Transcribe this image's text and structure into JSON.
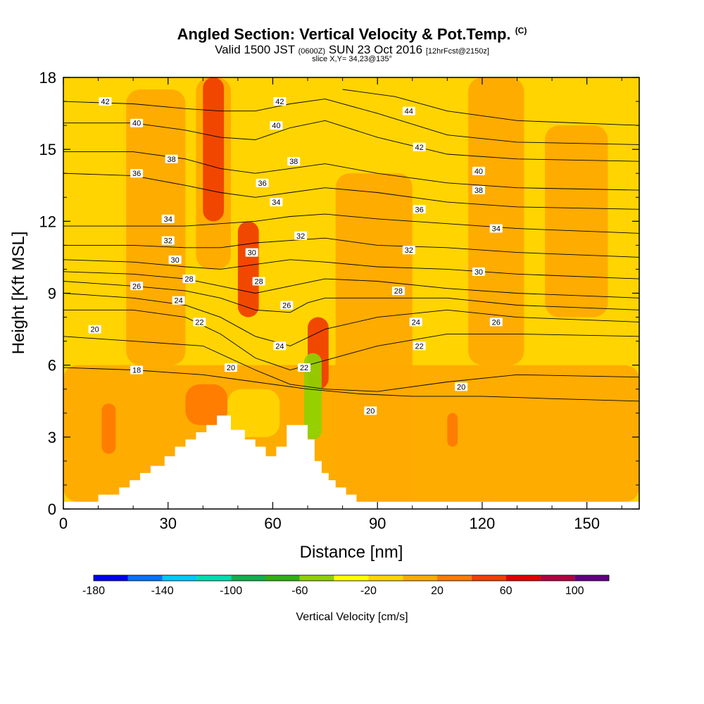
{
  "title": {
    "main": "Angled Section: Vertical Velocity & Pot.Temp.",
    "main_unit": "(C)",
    "valid_prefix": "Valid 1500 JST",
    "valid_z": "(0600Z)",
    "valid_date": "SUN 23 Oct 2016",
    "forecast": "[12hrFcst@2150z]",
    "slice": "slice X,Y= 34,23@135°"
  },
  "chart_data": {
    "type": "heatmap",
    "xlabel": "Distance [nm]",
    "ylabel": "Height [Kft MSL]",
    "xlim": [
      0,
      165
    ],
    "ylim": [
      0,
      18
    ],
    "x_ticks": [
      0,
      30,
      60,
      90,
      120,
      150
    ],
    "y_ticks": [
      0,
      3,
      6,
      9,
      12,
      15,
      18
    ],
    "colorbar": {
      "title": "Vertical Velocity [cm/s]",
      "bounds": [
        -180,
        -160,
        -140,
        -120,
        -100,
        -80,
        -60,
        -40,
        -20,
        0,
        20,
        40,
        60,
        80,
        100,
        120
      ],
      "colors": [
        "#0000ee",
        "#0070ff",
        "#00c8ff",
        "#00ddb0",
        "#10b050",
        "#30b010",
        "#90d000",
        "#ffff00",
        "#ffd400",
        "#ffaa00",
        "#ff7a00",
        "#f04000",
        "#e00000",
        "#b00040",
        "#600080"
      ],
      "tick_labels": [
        -180,
        -140,
        -100,
        -60,
        -20,
        20,
        60,
        100
      ]
    },
    "background_color": "#ffd400",
    "velocity_features": [
      {
        "name": "orange band",
        "value": 5,
        "x0": 0,
        "x1": 165,
        "y0": 0.3,
        "y1": 6
      },
      {
        "name": "orange column",
        "value": 5,
        "x0": 18,
        "x1": 35,
        "y0": 6,
        "y1": 17.5
      },
      {
        "name": "orange column",
        "value": 5,
        "x0": 38,
        "x1": 48,
        "y0": 10,
        "y1": 18
      },
      {
        "name": "orange column",
        "value": 5,
        "x0": 78,
        "x1": 100,
        "y0": 0.3,
        "y1": 14
      },
      {
        "name": "orange column",
        "value": 5,
        "x0": 116,
        "x1": 132,
        "y0": 6,
        "y1": 18
      },
      {
        "name": "orange column",
        "value": 5,
        "x0": 138,
        "x1": 156,
        "y0": 8,
        "y1": 16
      },
      {
        "name": "updraft core",
        "value": 45,
        "x0": 40,
        "x1": 46,
        "y0": 12,
        "y1": 18
      },
      {
        "name": "updraft core",
        "value": 45,
        "x0": 50,
        "x1": 56,
        "y0": 8,
        "y1": 12
      },
      {
        "name": "updraft core",
        "value": 45,
        "x0": 70,
        "x1": 76,
        "y0": 5,
        "y1": 8
      },
      {
        "name": "updraft core",
        "value": 30,
        "x0": 35,
        "x1": 47,
        "y0": 3.5,
        "y1": 5.2
      },
      {
        "name": "updraft core",
        "value": 30,
        "x0": 11,
        "x1": 15,
        "y0": 2.3,
        "y1": 4.4
      },
      {
        "name": "updraft core",
        "value": 30,
        "x0": 110,
        "x1": 113,
        "y0": 2.6,
        "y1": 4
      },
      {
        "name": "downdraft",
        "value": -10,
        "x0": 47,
        "x1": 62,
        "y0": 3,
        "y1": 5
      },
      {
        "name": "downdraft",
        "value": -10,
        "x0": 49,
        "x1": 54,
        "y0": 13,
        "y1": 18
      },
      {
        "name": "downdraft",
        "value": -10,
        "x0": 104,
        "x1": 110,
        "y0": 10,
        "y1": 16
      },
      {
        "name": "downdraft",
        "value": -10,
        "x0": 70,
        "x1": 74,
        "y0": 3,
        "y1": 5
      },
      {
        "name": "downdraft",
        "value": -50,
        "x0": 69,
        "x1": 74,
        "y0": 2.9,
        "y1": 6.5
      }
    ],
    "terrain": {
      "x": [
        0,
        10,
        10,
        16,
        16,
        19,
        19,
        22,
        22,
        25,
        25,
        29,
        29,
        32,
        32,
        35,
        35,
        38,
        38,
        41,
        41,
        44,
        44,
        48,
        48,
        52,
        52,
        55,
        55,
        58,
        58,
        61,
        61,
        64,
        64,
        66,
        66,
        70,
        70,
        72,
        72,
        74,
        74,
        76,
        76,
        78,
        78,
        81,
        81,
        84,
        84,
        90,
        90,
        165
      ],
      "y": [
        0.3,
        0.3,
        0.6,
        0.6,
        0.9,
        0.9,
        1.2,
        1.2,
        1.5,
        1.5,
        1.8,
        1.8,
        2.2,
        2.2,
        2.6,
        2.6,
        2.9,
        2.9,
        3.2,
        3.2,
        3.5,
        3.5,
        3.9,
        3.9,
        3.3,
        3.3,
        2.9,
        2.9,
        2.6,
        2.6,
        2.2,
        2.2,
        2.6,
        2.6,
        3.5,
        3.5,
        3.5,
        3.5,
        2.9,
        2.9,
        2.0,
        2.0,
        1.5,
        1.5,
        1.2,
        1.2,
        0.9,
        0.9,
        0.6,
        0.6,
        0.3,
        0.3,
        0.3,
        0.3
      ]
    },
    "isentropes": [
      {
        "value": 18,
        "x": [
          0,
          20,
          40,
          55,
          70,
          85,
          100,
          120,
          140,
          165
        ],
        "y": [
          5.9,
          5.8,
          5.6,
          5.3,
          5.0,
          4.8,
          4.7,
          4.7,
          4.6,
          4.5
        ]
      },
      {
        "value": 20,
        "x": [
          0,
          20,
          40,
          55,
          65,
          75,
          90,
          110,
          130,
          165
        ],
        "y": [
          7.2,
          7.0,
          6.8,
          5.8,
          5.2,
          5.0,
          4.9,
          5.3,
          5.6,
          5.5
        ]
      },
      {
        "value": 22,
        "x": [
          0,
          20,
          35,
          45,
          55,
          65,
          75,
          90,
          110,
          130,
          165
        ],
        "y": [
          8.3,
          8.3,
          8.0,
          7.3,
          6.3,
          5.8,
          6.2,
          6.8,
          7.3,
          7.3,
          7.2
        ]
      },
      {
        "value": 24,
        "x": [
          0,
          20,
          35,
          45,
          55,
          65,
          75,
          90,
          110,
          130,
          165
        ],
        "y": [
          9.0,
          8.8,
          8.5,
          8.0,
          7.2,
          6.8,
          7.5,
          8.0,
          8.3,
          8.0,
          7.8
        ]
      },
      {
        "value": 26,
        "x": [
          0,
          20,
          35,
          45,
          55,
          65,
          70,
          75,
          90,
          110,
          130,
          165
        ],
        "y": [
          9.5,
          9.3,
          9.1,
          8.8,
          8.3,
          8.2,
          8.6,
          8.8,
          8.8,
          8.8,
          8.5,
          8.3
        ]
      },
      {
        "value": 28,
        "x": [
          0,
          20,
          35,
          45,
          55,
          65,
          75,
          90,
          110,
          130,
          165
        ],
        "y": [
          9.9,
          9.8,
          9.6,
          9.3,
          9.0,
          9.3,
          9.6,
          9.5,
          9.2,
          9.0,
          8.8
        ]
      },
      {
        "value": 30,
        "x": [
          0,
          20,
          35,
          45,
          55,
          65,
          75,
          90,
          110,
          130,
          165
        ],
        "y": [
          10.4,
          10.3,
          10.1,
          10.0,
          10.2,
          10.4,
          10.3,
          10.1,
          10.0,
          9.8,
          9.6
        ]
      },
      {
        "value": 32,
        "x": [
          0,
          20,
          35,
          45,
          55,
          65,
          75,
          90,
          110,
          130,
          165
        ],
        "y": [
          11.0,
          11.0,
          10.9,
          10.9,
          11.1,
          11.2,
          11.3,
          11.0,
          10.9,
          10.7,
          10.5
        ]
      },
      {
        "value": 34,
        "x": [
          0,
          20,
          35,
          45,
          55,
          65,
          75,
          90,
          110,
          130,
          165
        ],
        "y": [
          11.8,
          11.8,
          11.8,
          11.9,
          12.0,
          12.2,
          12.3,
          12.1,
          11.9,
          11.7,
          11.5
        ]
      },
      {
        "value": 36,
        "x": [
          0,
          20,
          35,
          45,
          55,
          65,
          75,
          90,
          110,
          130,
          165
        ],
        "y": [
          14.0,
          13.9,
          13.5,
          13.2,
          13.0,
          13.2,
          13.4,
          13.2,
          12.8,
          12.6,
          12.5
        ]
      },
      {
        "value": 38,
        "x": [
          0,
          20,
          35,
          45,
          55,
          65,
          75,
          90,
          110,
          130,
          165
        ],
        "y": [
          14.9,
          14.9,
          14.6,
          14.2,
          14.0,
          14.2,
          14.4,
          14.0,
          13.6,
          13.4,
          13.3
        ]
      },
      {
        "value": 40,
        "x": [
          0,
          20,
          35,
          45,
          55,
          65,
          75,
          90,
          110,
          130,
          165
        ],
        "y": [
          16.1,
          16.1,
          15.8,
          15.5,
          15.4,
          15.9,
          16.2,
          15.5,
          14.8,
          14.6,
          14.5
        ]
      },
      {
        "value": 42,
        "x": [
          0,
          20,
          35,
          45,
          55,
          65,
          75,
          90,
          110,
          130,
          165
        ],
        "y": [
          17.0,
          16.9,
          16.7,
          16.6,
          16.6,
          16.9,
          17.1,
          16.5,
          15.6,
          15.3,
          15.2
        ]
      },
      {
        "value": 44,
        "x": [
          80,
          95,
          110,
          130,
          165
        ],
        "y": [
          17.5,
          17.2,
          16.6,
          16.2,
          16.0
        ]
      }
    ],
    "isentrope_labels": [
      {
        "text": "42",
        "x": 12,
        "y": 17.0
      },
      {
        "text": "40",
        "x": 21,
        "y": 16.1
      },
      {
        "text": "38",
        "x": 31,
        "y": 14.6
      },
      {
        "text": "36",
        "x": 21,
        "y": 14.0
      },
      {
        "text": "34",
        "x": 30,
        "y": 12.1
      },
      {
        "text": "32",
        "x": 30,
        "y": 11.2
      },
      {
        "text": "30",
        "x": 32,
        "y": 10.4
      },
      {
        "text": "28",
        "x": 36,
        "y": 9.6
      },
      {
        "text": "26",
        "x": 21,
        "y": 9.3
      },
      {
        "text": "24",
        "x": 33,
        "y": 8.7
      },
      {
        "text": "22",
        "x": 39,
        "y": 7.8
      },
      {
        "text": "20",
        "x": 9,
        "y": 7.5
      },
      {
        "text": "18",
        "x": 21,
        "y": 5.8
      },
      {
        "text": "20",
        "x": 48,
        "y": 5.9
      },
      {
        "text": "42",
        "x": 62,
        "y": 17.0
      },
      {
        "text": "40",
        "x": 61,
        "y": 16.0
      },
      {
        "text": "38",
        "x": 66,
        "y": 14.5
      },
      {
        "text": "36",
        "x": 57,
        "y": 13.6
      },
      {
        "text": "34",
        "x": 61,
        "y": 12.8
      },
      {
        "text": "32",
        "x": 68,
        "y": 11.4
      },
      {
        "text": "30",
        "x": 54,
        "y": 10.7
      },
      {
        "text": "28",
        "x": 56,
        "y": 9.5
      },
      {
        "text": "26",
        "x": 64,
        "y": 8.5
      },
      {
        "text": "24",
        "x": 62,
        "y": 6.8
      },
      {
        "text": "22",
        "x": 69,
        "y": 5.9
      },
      {
        "text": "44",
        "x": 99,
        "y": 16.6
      },
      {
        "text": "42",
        "x": 102,
        "y": 15.1
      },
      {
        "text": "40",
        "x": 119,
        "y": 14.1
      },
      {
        "text": "38",
        "x": 119,
        "y": 13.3
      },
      {
        "text": "36",
        "x": 102,
        "y": 12.5
      },
      {
        "text": "34",
        "x": 124,
        "y": 11.7
      },
      {
        "text": "32",
        "x": 99,
        "y": 10.8
      },
      {
        "text": "30",
        "x": 119,
        "y": 9.9
      },
      {
        "text": "28",
        "x": 96,
        "y": 9.1
      },
      {
        "text": "26",
        "x": 124,
        "y": 7.8
      },
      {
        "text": "24",
        "x": 101,
        "y": 7.8
      },
      {
        "text": "22",
        "x": 102,
        "y": 6.8
      },
      {
        "text": "20",
        "x": 114,
        "y": 5.1
      },
      {
        "text": "20",
        "x": 88,
        "y": 4.1
      }
    ]
  }
}
